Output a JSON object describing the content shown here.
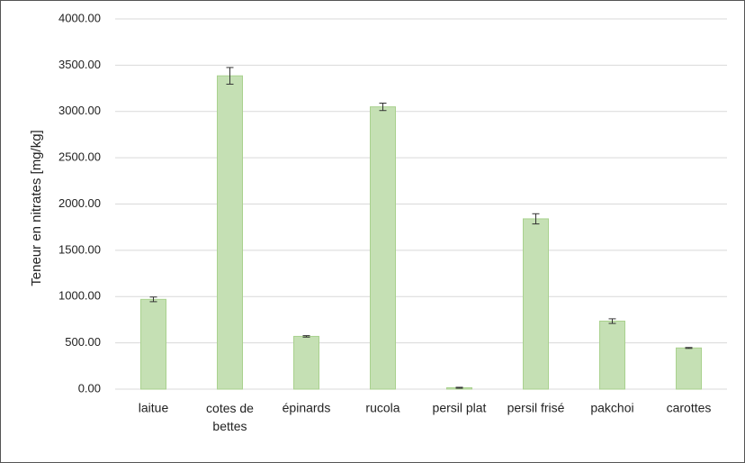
{
  "chart_data": {
    "type": "bar",
    "y_label": "Teneur en nitrates [mg/kg]",
    "categories": [
      "laitue",
      "cotes de bettes",
      "épinards",
      "rucola",
      "persil plat",
      "persil frisé",
      "pakchoi",
      "carottes"
    ],
    "values": [
      970,
      3385,
      570,
      3050,
      15,
      1840,
      735,
      445
    ],
    "errors": [
      25,
      90,
      8,
      40,
      5,
      55,
      25,
      5
    ],
    "color": "#c5e0b4",
    "ylim": [
      0,
      4000
    ],
    "yticks": [
      {
        "value": 0,
        "label": "0.00"
      },
      {
        "value": 500,
        "label": "500.00"
      },
      {
        "value": 1000,
        "label": "1000.00"
      },
      {
        "value": 1500,
        "label": "1500.00"
      },
      {
        "value": 2000,
        "label": "2000.00"
      },
      {
        "value": 2500,
        "label": "2500.00"
      },
      {
        "value": 3000,
        "label": "3000.00"
      },
      {
        "value": 3500,
        "label": "3500.00"
      },
      {
        "value": 4000,
        "label": "4000.00"
      }
    ],
    "grid": true
  }
}
